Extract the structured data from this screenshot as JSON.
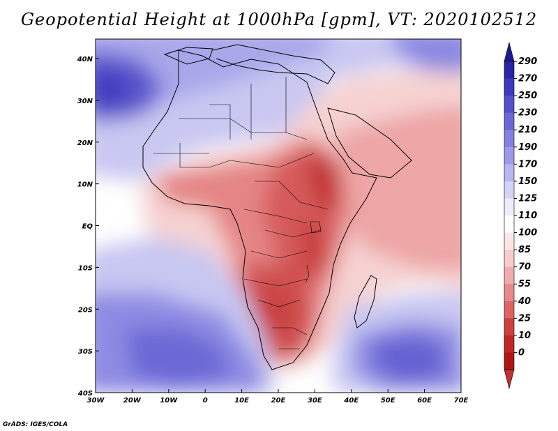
{
  "title": "Geopotential Height at 1000hPa [gpm], VT: 2020102512",
  "credit": "GrADS: IGES/COLA",
  "map": {
    "lon_labels": [
      "30W",
      "20W",
      "10W",
      "0",
      "10E",
      "20E",
      "30E",
      "40E",
      "50E",
      "60E",
      "70E"
    ],
    "lat_labels": [
      "40N",
      "30N",
      "20N",
      "10N",
      "EQ",
      "10S",
      "20S",
      "30S",
      "40S"
    ]
  },
  "colorbar": {
    "labels": [
      "290",
      "270",
      "250",
      "230",
      "210",
      "190",
      "170",
      "150",
      "125",
      "110",
      "100",
      "85",
      "70",
      "55",
      "40",
      "25",
      "10",
      "0"
    ],
    "colors": [
      "#2a25a6",
      "#3d38bd",
      "#5450cc",
      "#6b68d6",
      "#8380e0",
      "#9d9ae8",
      "#b8b6f0",
      "#d4d3f6",
      "#ececfb",
      "#ffffff",
      "#fbe6e6",
      "#f6cccc",
      "#f0adad",
      "#e88a8a",
      "#dc6464",
      "#cf4040",
      "#c22727",
      "#b01515"
    ],
    "arrow_top_color": "#1d1890",
    "arrow_bottom_color": "#c23030"
  }
}
